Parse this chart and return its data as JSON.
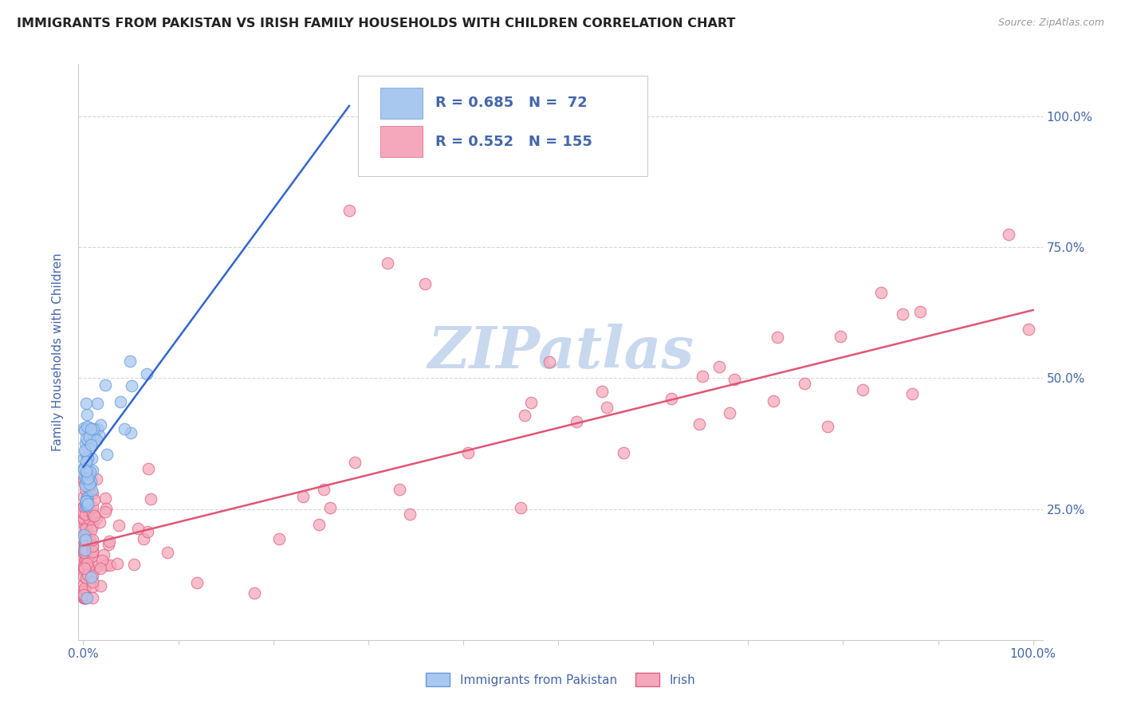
{
  "title": "IMMIGRANTS FROM PAKISTAN VS IRISH FAMILY HOUSEHOLDS WITH CHILDREN CORRELATION CHART",
  "source": "Source: ZipAtlas.com",
  "ylabel": "Family Households with Children",
  "ytick_labels": [
    "25.0%",
    "50.0%",
    "75.0%",
    "100.0%"
  ],
  "ytick_positions": [
    0.25,
    0.5,
    0.75,
    1.0
  ],
  "legend_blue_r": "0.685",
  "legend_blue_n": "72",
  "legend_pink_r": "0.552",
  "legend_pink_n": "155",
  "legend_label_blue": "Immigrants from Pakistan",
  "legend_label_pink": "Irish",
  "blue_color": "#a8c8f0",
  "pink_color": "#f5a8bc",
  "blue_edge_color": "#6699dd",
  "pink_edge_color": "#e06080",
  "blue_line_color": "#3366cc",
  "pink_line_color": "#e05575",
  "watermark": "ZIPatlas",
  "watermark_color": "#c8d8ee",
  "title_color": "#222222",
  "axis_label_color": "#4466aa",
  "grid_color": "#cccccc",
  "background_color": "#ffffff",
  "blue_line_x0": 0.0,
  "blue_line_y0": 0.33,
  "blue_line_x1": 0.28,
  "blue_line_y1": 1.02,
  "pink_line_x0": 0.0,
  "pink_line_y0": 0.18,
  "pink_line_x1": 1.0,
  "pink_line_y1": 0.63,
  "xlim": [
    -0.005,
    1.01
  ],
  "ylim": [
    0.0,
    1.1
  ]
}
